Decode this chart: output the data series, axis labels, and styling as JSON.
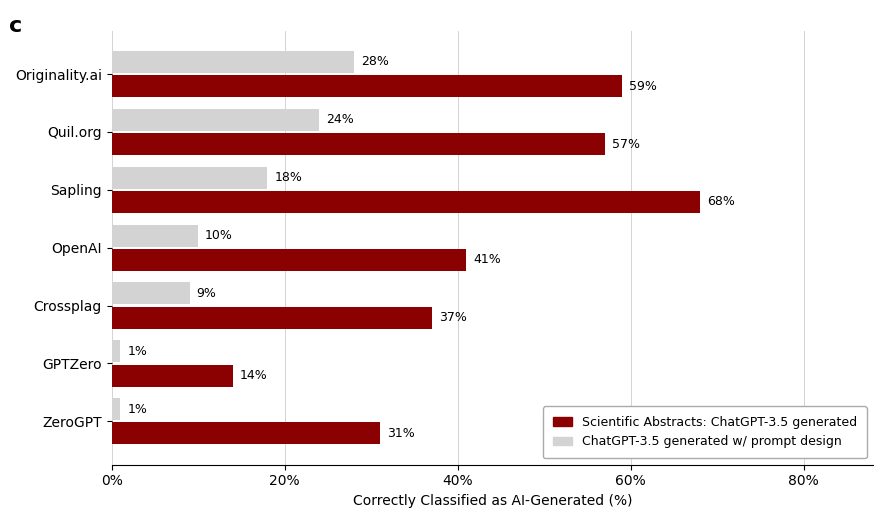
{
  "categories": [
    "Originality.ai",
    "Quil.org",
    "Sapling",
    "OpenAI",
    "Crossplag",
    "GPTZero",
    "ZeroGPT"
  ],
  "dark_red_values": [
    59,
    57,
    68,
    41,
    37,
    14,
    31
  ],
  "light_gray_values": [
    28,
    24,
    18,
    10,
    9,
    1,
    1
  ],
  "dark_red_labels": [
    "59%",
    "57%",
    "68%",
    "41%",
    "37%",
    "14%",
    "31%"
  ],
  "light_gray_labels": [
    "28%",
    "24%",
    "18%",
    "10%",
    "9%",
    "1%",
    "1%"
  ],
  "dark_red_color": "#8B0000",
  "light_gray_color": "#D3D3D3",
  "title_label": "c",
  "xlabel": "Correctly Classified as AI-Generated (%)",
  "xlim": [
    0,
    88
  ],
  "xtick_values": [
    0,
    20,
    40,
    60,
    80
  ],
  "xtick_labels": [
    "0%",
    "20%",
    "40%",
    "60%",
    "80%"
  ],
  "legend_label_dark": "Scientific Abstracts: ChatGPT-3.5 generated",
  "legend_label_light": "ChatGPT-3.5 generated w/ prompt design",
  "bar_height": 0.38,
  "bar_gap": 0.04,
  "figsize": [
    8.88,
    5.23
  ],
  "dpi": 100
}
